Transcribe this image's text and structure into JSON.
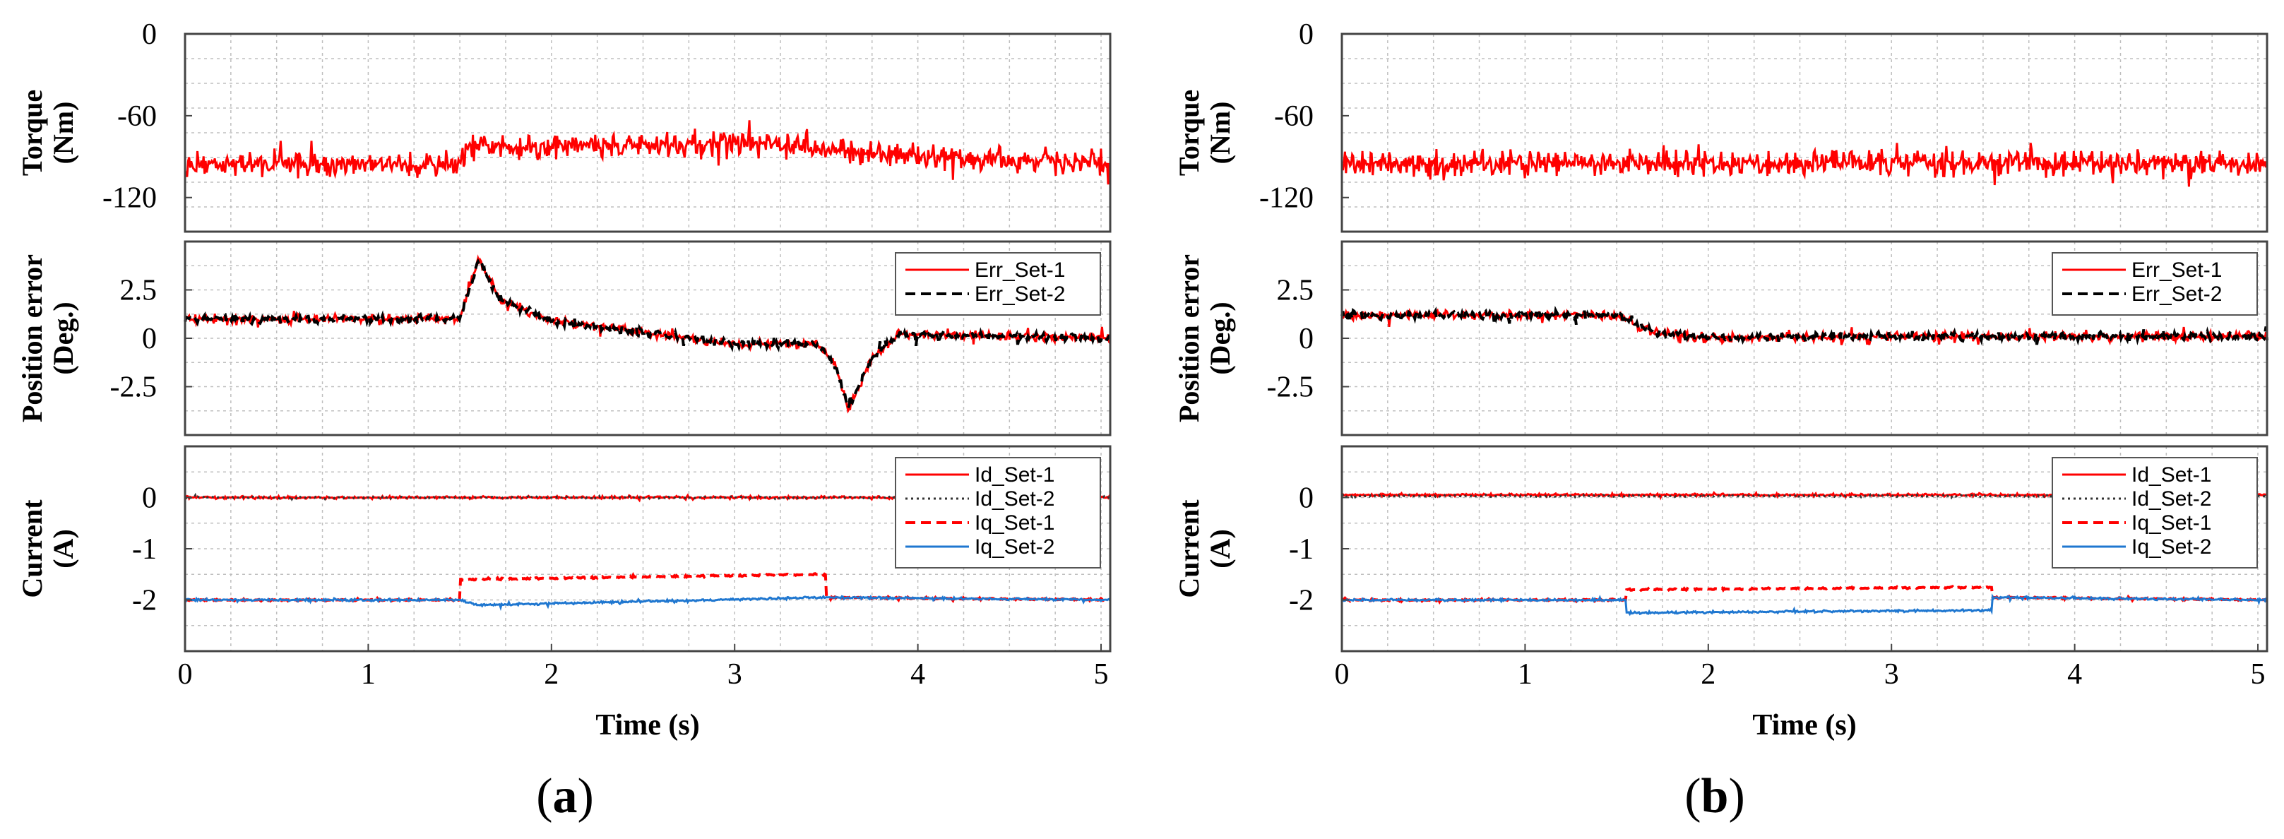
{
  "colors": {
    "set1": "#ff0000",
    "set2_err": "#000000",
    "set2_id": "#333333",
    "iq2": "#1f77d0",
    "grid": "#bfbfbf"
  },
  "chart_data": [
    {
      "caption_open": "(",
      "caption_letter": "a",
      "caption_close": ")",
      "xlabel": "Time (s)",
      "xlim": [
        0,
        5.05
      ],
      "x_ticks": [
        "0",
        "1",
        "2",
        "3",
        "4",
        "5"
      ],
      "panels": [
        {
          "type": "line",
          "ylabel_lines": [
            "Torque",
            "(Nm)"
          ],
          "ylim": [
            -145,
            0
          ],
          "y_ticks": [
            {
              "v": 0,
              "label": "0"
            },
            {
              "v": -60,
              "label": "-60"
            },
            {
              "v": -120,
              "label": "-120"
            }
          ],
          "legend": [],
          "series": [
            {
              "name": "Torque",
              "color": "#ff0000",
              "style": "solid",
              "noise": 11,
              "x": [
                0,
                1.5,
                1.55,
                3.0,
                4.0,
                5.05
              ],
              "y": [
                -95,
                -95,
                -83,
                -80,
                -90,
                -95
              ]
            }
          ]
        },
        {
          "type": "line",
          "ylabel_lines": [
            "Position error",
            "(Deg.)"
          ],
          "ylim": [
            -5,
            5
          ],
          "y_ticks": [
            {
              "v": 2.5,
              "label": "2.5"
            },
            {
              "v": 0,
              "label": "0"
            },
            {
              "v": -2.5,
              "label": "-2.5"
            }
          ],
          "legend": [
            {
              "label": "Err_Set-1",
              "color": "#ff0000",
              "style": "solid"
            },
            {
              "label": "Err_Set-2",
              "color": "#000000",
              "style": "dash"
            }
          ],
          "series": [
            {
              "name": "Err_Set-1",
              "color": "#ff0000",
              "style": "solid",
              "noise": 0.28,
              "x": [
                0,
                1.5,
                1.6,
                1.72,
                2.0,
                2.5,
                3.0,
                3.45,
                3.55,
                3.62,
                3.75,
                3.9,
                4.5,
                5.05
              ],
              "y": [
                1.0,
                1.0,
                4.1,
                2.0,
                0.9,
                0.3,
                -0.3,
                -0.3,
                -1.4,
                -3.7,
                -1.0,
                0.2,
                0.1,
                0.0
              ]
            },
            {
              "name": "Err_Set-2",
              "color": "#000000",
              "style": "dash",
              "noise": 0.25,
              "x": [
                0,
                1.5,
                1.6,
                1.72,
                2.0,
                2.5,
                3.0,
                3.45,
                3.55,
                3.62,
                3.75,
                3.9,
                4.5,
                5.05
              ],
              "y": [
                1.0,
                1.0,
                4.0,
                2.0,
                0.9,
                0.3,
                -0.3,
                -0.3,
                -1.4,
                -3.6,
                -1.0,
                0.2,
                0.1,
                0.0
              ]
            }
          ]
        },
        {
          "type": "line",
          "ylabel_lines": [
            "Current",
            "(A)"
          ],
          "ylim": [
            -3.0,
            1.0
          ],
          "y_ticks": [
            {
              "v": 0,
              "label": "0"
            },
            {
              "v": -1,
              "label": "-1"
            },
            {
              "v": -2,
              "label": "-2"
            }
          ],
          "legend": [
            {
              "label": "Id_Set-1",
              "color": "#ff0000",
              "style": "solid"
            },
            {
              "label": "Id_Set-2",
              "color": "#333333",
              "style": "dot"
            },
            {
              "label": "Iq_Set-1",
              "color": "#ff0000",
              "style": "dash"
            },
            {
              "label": "Iq_Set-2",
              "color": "#1f77d0",
              "style": "solid"
            }
          ],
          "series": [
            {
              "name": "Iq_Set-1",
              "color": "#ff0000",
              "style": "dash",
              "noise": 0.02,
              "x": [
                0,
                1.5,
                1.5,
                3.5,
                3.5,
                5.05
              ],
              "y": [
                -2.0,
                -2.0,
                -1.6,
                -1.5,
                -1.95,
                -2.0
              ]
            },
            {
              "name": "Iq_Set-2",
              "color": "#1f77d0",
              "style": "solid",
              "noise": 0.025,
              "x": [
                0,
                1.5,
                1.6,
                3.5,
                5.05
              ],
              "y": [
                -2.0,
                -2.0,
                -2.1,
                -1.95,
                -2.0
              ]
            },
            {
              "name": "Id_Set-1",
              "color": "#ff0000",
              "style": "solid",
              "noise": 0.03,
              "x": [
                0,
                5.05
              ],
              "y": [
                0,
                0
              ]
            },
            {
              "name": "Id_Set-2",
              "color": "#333333",
              "style": "dot",
              "noise": 0.02,
              "x": [
                0,
                5.05
              ],
              "y": [
                0,
                0
              ]
            }
          ]
        }
      ]
    },
    {
      "caption_open": "(",
      "caption_letter": "b",
      "caption_close": ")",
      "xlabel": "Time (s)",
      "xlim": [
        0,
        5.05
      ],
      "x_ticks": [
        "0",
        "1",
        "2",
        "3",
        "4",
        "5"
      ],
      "panels": [
        {
          "type": "line",
          "ylabel_lines": [
            "Torque",
            "(Nm)"
          ],
          "ylim": [
            -145,
            0
          ],
          "y_ticks": [
            {
              "v": 0,
              "label": "0"
            },
            {
              "v": -60,
              "label": "-60"
            },
            {
              "v": -120,
              "label": "-120"
            }
          ],
          "legend": [],
          "series": [
            {
              "name": "Torque",
              "color": "#ff0000",
              "style": "solid",
              "noise": 11,
              "x": [
                0,
                5.05
              ],
              "y": [
                -95,
                -95
              ]
            }
          ]
        },
        {
          "type": "line",
          "ylabel_lines": [
            "Position error",
            "(Deg.)"
          ],
          "ylim": [
            -5,
            5
          ],
          "y_ticks": [
            {
              "v": 2.5,
              "label": "2.5"
            },
            {
              "v": 0,
              "label": "0"
            },
            {
              "v": -2.5,
              "label": "-2.5"
            }
          ],
          "legend": [
            {
              "label": "Err_Set-1",
              "color": "#ff0000",
              "style": "solid"
            },
            {
              "label": "Err_Set-2",
              "color": "#000000",
              "style": "dash"
            }
          ],
          "series": [
            {
              "name": "Err_Set-1",
              "color": "#ff0000",
              "style": "solid",
              "noise": 0.28,
              "x": [
                0,
                1.5,
                1.7,
                2.0,
                3.0,
                4.0,
                5.05
              ],
              "y": [
                1.2,
                1.2,
                0.3,
                0.0,
                0.1,
                0.1,
                0.1
              ]
            },
            {
              "name": "Err_Set-2",
              "color": "#000000",
              "style": "dash",
              "noise": 0.25,
              "x": [
                0,
                1.5,
                1.7,
                2.0,
                3.0,
                4.0,
                5.05
              ],
              "y": [
                1.2,
                1.2,
                0.3,
                0.0,
                0.1,
                0.1,
                0.1
              ]
            }
          ]
        },
        {
          "type": "line",
          "ylabel_lines": [
            "Current",
            "(A)"
          ],
          "ylim": [
            -3.0,
            1.0
          ],
          "y_ticks": [
            {
              "v": 0,
              "label": "0"
            },
            {
              "v": -1,
              "label": "-1"
            },
            {
              "v": -2,
              "label": "-2"
            }
          ],
          "legend": [
            {
              "label": "Id_Set-1",
              "color": "#ff0000",
              "style": "solid"
            },
            {
              "label": "Id_Set-2",
              "color": "#333333",
              "style": "dot"
            },
            {
              "label": "Iq_Set-1",
              "color": "#ff0000",
              "style": "dash"
            },
            {
              "label": "Iq_Set-2",
              "color": "#1f77d0",
              "style": "solid"
            }
          ],
          "series": [
            {
              "name": "Iq_Set-1",
              "color": "#ff0000",
              "style": "dash",
              "noise": 0.02,
              "x": [
                0,
                1.55,
                1.55,
                3.55,
                3.55,
                5.05
              ],
              "y": [
                -2.0,
                -2.0,
                -1.8,
                -1.75,
                -1.95,
                -2.0
              ]
            },
            {
              "name": "Iq_Set-2",
              "color": "#1f77d0",
              "style": "solid",
              "noise": 0.025,
              "x": [
                0,
                1.55,
                1.55,
                3.55,
                3.55,
                5.05
              ],
              "y": [
                -2.0,
                -2.0,
                -2.25,
                -2.2,
                -1.95,
                -2.0
              ]
            },
            {
              "name": "Id_Set-1",
              "color": "#ff0000",
              "style": "solid",
              "noise": 0.03,
              "x": [
                0,
                5.05
              ],
              "y": [
                0.05,
                0.05
              ]
            },
            {
              "name": "Id_Set-2",
              "color": "#333333",
              "style": "dot",
              "noise": 0.02,
              "x": [
                0,
                5.05
              ],
              "y": [
                0.03,
                0.03
              ]
            }
          ]
        }
      ]
    }
  ]
}
